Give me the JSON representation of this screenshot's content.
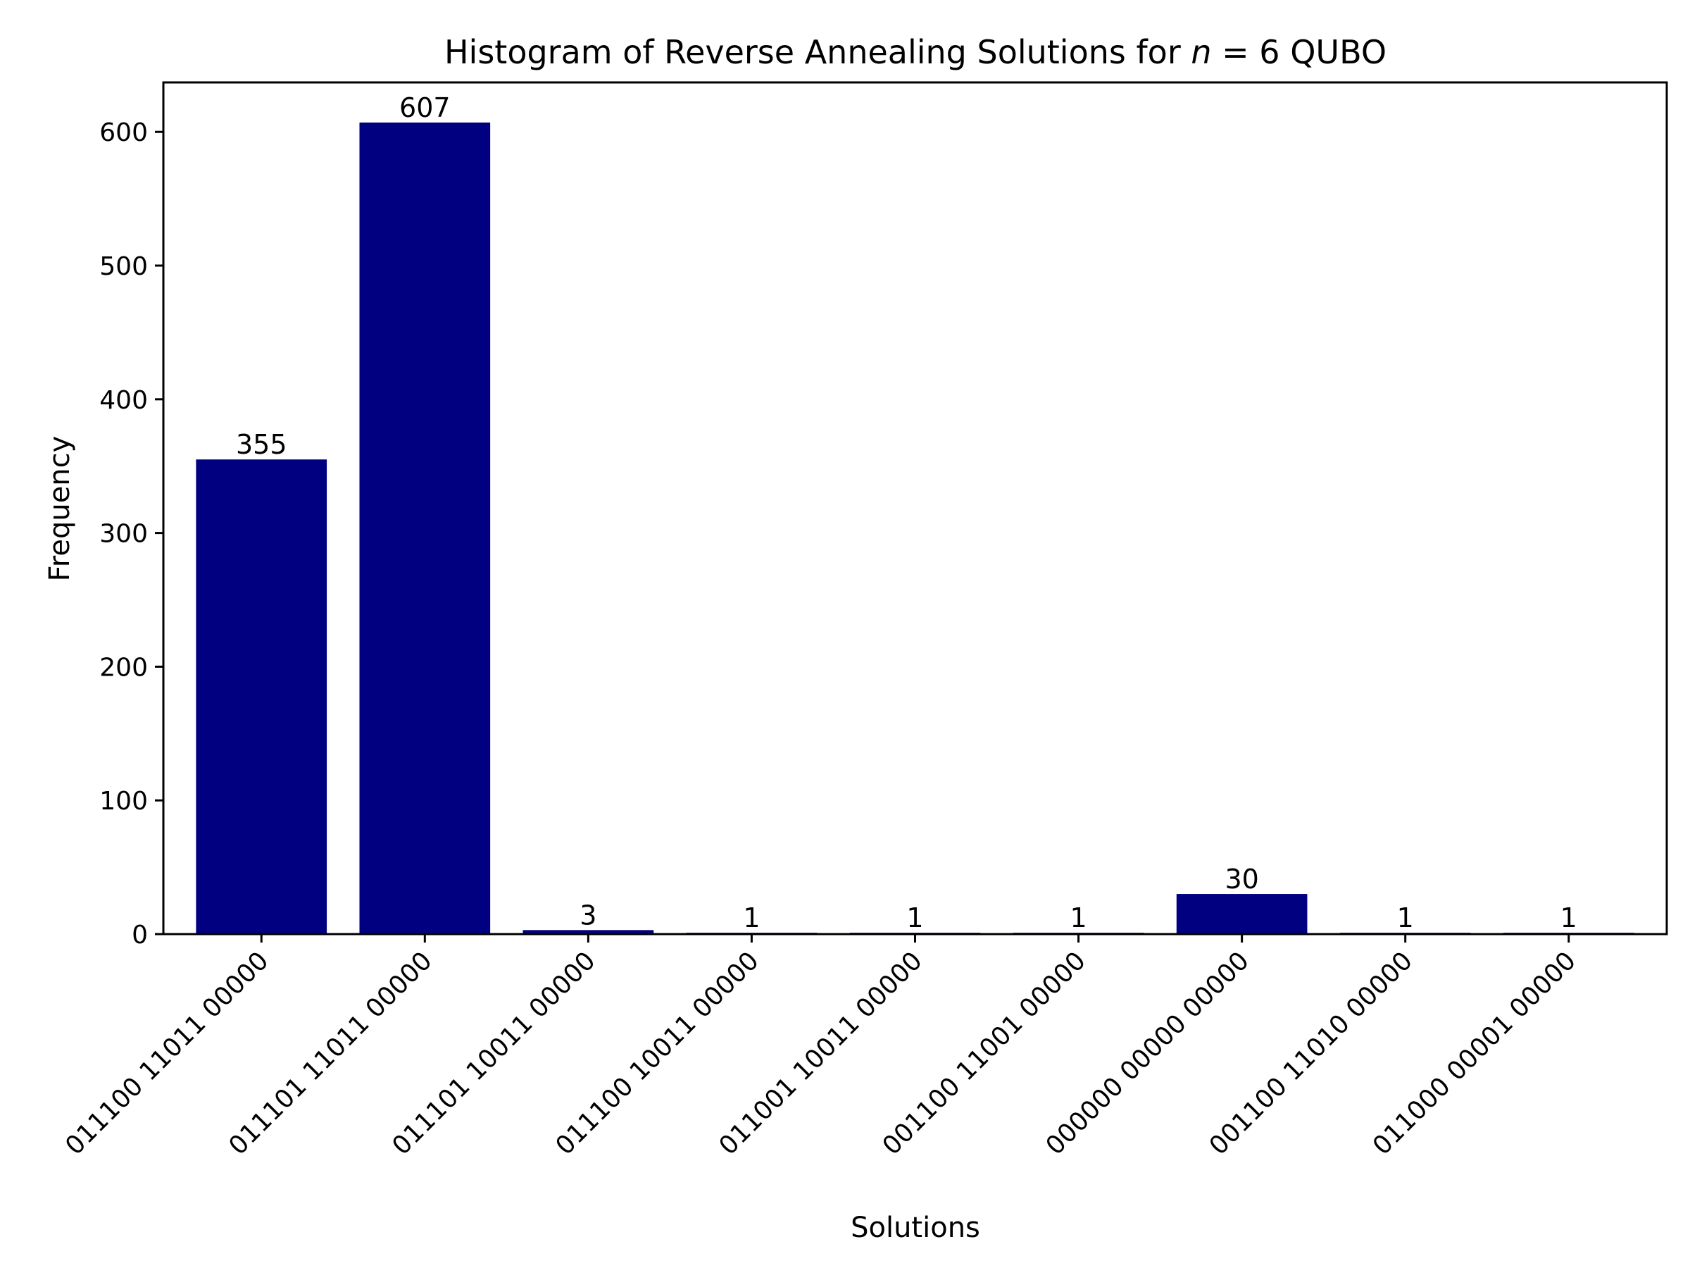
{
  "chart_data": {
    "type": "bar",
    "title_prefix": "Histogram of Reverse Annealing Solutions for ",
    "title_var": "n",
    "title_suffix": " = 6 QUBO",
    "xlabel": "Solutions",
    "ylabel": "Frequency",
    "categories": [
      "011100 11011 00000",
      "011101 11011 00000",
      "011101 10011 00000",
      "011100 10011 00000",
      "011001 10011 00000",
      "001100 11001 00000",
      "000000 00000 00000",
      "001100 11010 00000",
      "011000 00001 00000"
    ],
    "values": [
      355,
      607,
      3,
      1,
      1,
      1,
      30,
      1,
      1
    ],
    "data_labels": [
      "355",
      "607",
      "3",
      "1",
      "1",
      "1",
      "30",
      "1",
      "1"
    ],
    "ylim": [
      0,
      637
    ],
    "yticks": [
      0,
      100,
      200,
      300,
      400,
      500,
      600
    ],
    "ytick_labels": [
      "0",
      "100",
      "200",
      "300",
      "400",
      "500",
      "600"
    ],
    "bar_color": "#000080",
    "grid": false,
    "legend": "none"
  }
}
